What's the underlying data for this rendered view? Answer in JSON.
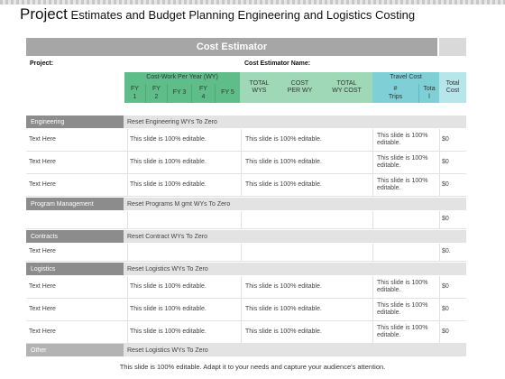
{
  "title": {
    "first_word": "Project",
    "rest": " Estimates and Budget Planning Engineering and Logistics Costing"
  },
  "header_bar": "Cost Estimator",
  "labels": {
    "project": "Project:",
    "estimator_name": "Cost Estimator Name:"
  },
  "column_groups": {
    "cost_work": "Cost-Work Per Year (WY)",
    "travel_cost": "Travel  Cost"
  },
  "columns": {
    "fy1": "FY\n1",
    "fy2": "FY\n2",
    "fy3": "FY 3",
    "fy4": "FY\n4",
    "fy5": "FY 5",
    "total_wys": "TOTAL\nWYS",
    "cost_per_wy": "COST\nPER WY",
    "total_wy_cost": "TOTAL\nWY COST",
    "trips": "#\nTrips",
    "travel_total": "Tota\nl",
    "total_cost": "Total\nCost"
  },
  "sections": [
    {
      "name": "Engineering",
      "reset": "Reset Engineering WYs To Zero"
    },
    {
      "name": "Program Management",
      "reset": "Reset Programs M gmt WYs To Zero"
    },
    {
      "name": "Contracts",
      "reset": "Reset Contract WYs To Zero"
    },
    {
      "name": "Logistics",
      "reset": "Reset Logistics WYs To Zero"
    },
    {
      "name": "Other",
      "reset": "Reset Logistics WYs To Zero"
    }
  ],
  "rows": {
    "engineering": [
      {
        "label": "Text Here",
        "a": "This slide is 100% editable.",
        "b": "This slide is 100% editable.",
        "c": "This slide is 100% editable.",
        "total": "$0"
      },
      {
        "label": "Text Here",
        "a": "This slide is 100% editable.",
        "b": "This slide is 100% editable.",
        "c": "This slide is 100% editable.",
        "total": "$0"
      },
      {
        "label": "Text Here",
        "a": "This slide is 100% editable.",
        "b": "This slide is 100% editable.",
        "c": "This slide is 100% editable.",
        "total": "$0"
      }
    ],
    "program_management": [
      {
        "total": "$0"
      }
    ],
    "contracts": [
      {
        "label": "Text Here",
        "total": "$0."
      }
    ],
    "logistics": [
      {
        "label": "Text Here",
        "a": "This slide is 100% editable.",
        "b": "This slide is 100% editable.",
        "c": "This slide is 100% editable.",
        "total": "$0"
      },
      {
        "label": "Text Here",
        "a": "This slide is 100% editable.",
        "b": "This slide is 100% editable.",
        "c": "This slide is 100% editable.",
        "total": "$0"
      },
      {
        "label": "Text Here",
        "a": "This slide is 100% editable.",
        "b": "This slide is 100% editable.",
        "c": "This slide is 100% editable.",
        "total": "$0"
      }
    ]
  },
  "footer": "This slide is 100% editable.  Adapt it to your needs and capture your audience's attention.",
  "colors": {
    "green": "#5fbd8a",
    "light_green": "#9fd8b7",
    "teal": "#7fcfd6",
    "light_teal": "#b7e6ea",
    "gray_bar": "#a6a6a6",
    "section_gray": "#8c8c8c"
  }
}
